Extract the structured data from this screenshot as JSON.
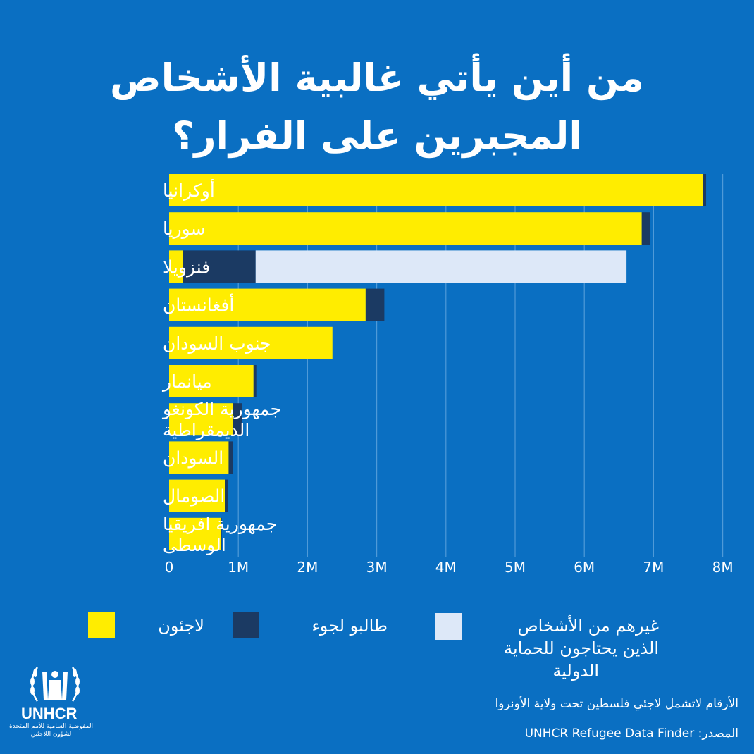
{
  "title": {
    "line1": "من أين يأتي غالبية الأشخاص",
    "line2": "المجبرين على الفرار؟"
  },
  "colors": {
    "background": "#0a6fc2",
    "refugees": "#ffed00",
    "asylum_seekers": "#1b3a63",
    "others": "#dde8f8",
    "grid": "#4f9ad8"
  },
  "chart_data": {
    "type": "bar",
    "orientation": "horizontal",
    "stacked": true,
    "title": "من أين يأتي غالبية الأشخاص المجبرين على الفرار؟",
    "categories": [
      "أوكرانيا",
      "سوريا",
      "فنزويلا",
      "أفغانستان",
      "جنوب السودان",
      "ميانمار",
      "جمهورية الكونغو الديمقراطية",
      "السودان",
      "الصومال",
      "جمهورية افريقيا الوسطى"
    ],
    "category_lines": [
      [
        "أوكرانيا"
      ],
      [
        "سوريا"
      ],
      [
        "فنزويلا"
      ],
      [
        "أفغانستان"
      ],
      [
        "جنوب السودان"
      ],
      [
        "ميانمار"
      ],
      [
        "جمهورية الكونغو",
        "الديمقراطية"
      ],
      [
        "السودان"
      ],
      [
        "الصومال"
      ],
      [
        "جمهورية افريقيا",
        "الوسطى"
      ]
    ],
    "series": [
      {
        "name": "لاجئون",
        "color": "#ffed00",
        "values": [
          7.71,
          6.83,
          0.2,
          2.84,
          2.36,
          1.22,
          0.92,
          0.86,
          0.81,
          0.75
        ]
      },
      {
        "name": "طالبو لجوء",
        "color": "#1b3a63",
        "values": [
          0.05,
          0.12,
          1.05,
          0.27,
          0.0,
          0.04,
          0.13,
          0.06,
          0.04,
          0.01
        ]
      },
      {
        "name": "غيرهم من الأشخاص الذين يحتاجون للحماية الدولية",
        "color": "#dde8f8",
        "values": [
          0,
          0,
          5.36,
          0,
          0,
          0,
          0,
          0,
          0,
          0
        ]
      }
    ],
    "xlim": [
      0,
      8
    ],
    "xticks": [
      "0",
      "1M",
      "2M",
      "3M",
      "4M",
      "5M",
      "6M",
      "7M",
      "8M"
    ],
    "grid": true,
    "legend_position": "bottom"
  },
  "legend": [
    {
      "label_lines": [
        "لاجئون"
      ],
      "color": "#ffed00"
    },
    {
      "label_lines": [
        "طالبو لجوء"
      ],
      "color": "#1b3a63"
    },
    {
      "label_lines": [
        "غيرهم من الأشخاص",
        "الذين يحتاجون للحماية",
        "الدولية"
      ],
      "color": "#dde8f8"
    }
  ],
  "logo": {
    "wordmark": "UNHCR",
    "subtitle": "المفوضية السامية للأمم المتحدة لشؤون اللاجئين"
  },
  "footer": {
    "note": "الأرقام لاتشمل لاجئي فلسطين تحت ولاية الأونروا",
    "source": "المصدر: UNHCR Refugee Data Finder"
  }
}
